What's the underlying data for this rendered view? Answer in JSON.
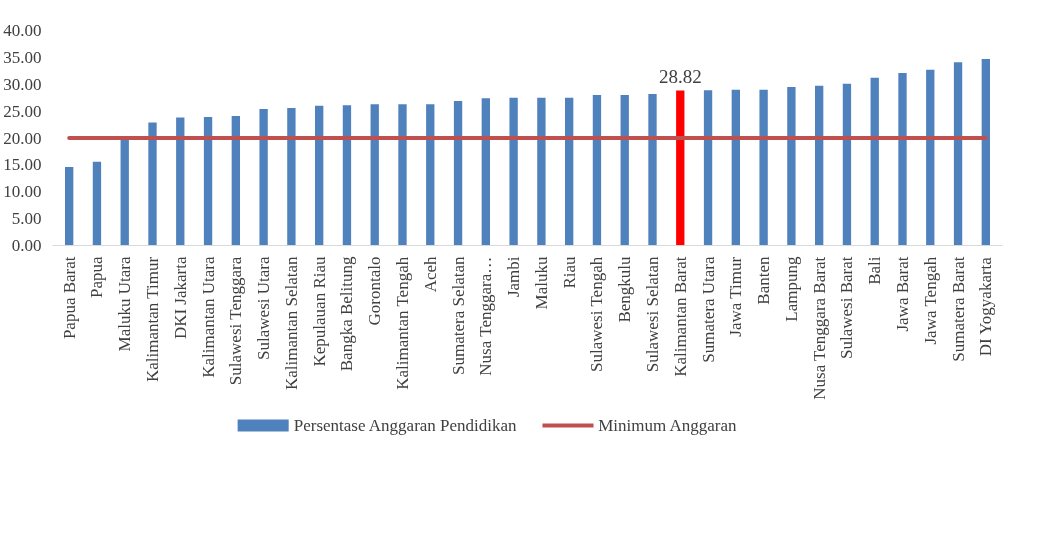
{
  "chart_data": {
    "type": "bar",
    "categories": [
      "Papua Barat",
      "Papua",
      "Maluku Utara",
      "Kalimantan Timur",
      "DKI Jakarta",
      "Kalimantan Utara",
      "Sulawesi Tenggara",
      "Sulawesi Utara",
      "Kalimantan Selatan",
      "Kepulauan Riau",
      "Bangka Belitung",
      "Gorontalo",
      "Kalimantan Tengah",
      "Aceh",
      "Sumatera Selatan",
      "Nusa Tenggara…",
      "Jambi",
      "Maluku",
      "Riau",
      "Sulawesi Tengah",
      "Bengkulu",
      "Sulawesi Selatan",
      "Kalimantan Barat",
      "Sumatera Utara",
      "Jawa Timur",
      "Banten",
      "Lampung",
      "Nusa Tenggara Barat",
      "Sulawesi Barat",
      "Bali",
      "Jawa Barat",
      "Jawa Tengah",
      "Sumatera Barat",
      "DI Yogyakarta"
    ],
    "series": [
      {
        "name": "Persentase Anggaran Pendidikan",
        "color": "#4f81bd",
        "colors": [
          "#4f81bd",
          "#4f81bd",
          "#4f81bd",
          "#4f81bd",
          "#4f81bd",
          "#4f81bd",
          "#4f81bd",
          "#4f81bd",
          "#4f81bd",
          "#4f81bd",
          "#4f81bd",
          "#4f81bd",
          "#4f81bd",
          "#4f81bd",
          "#4f81bd",
          "#4f81bd",
          "#4f81bd",
          "#4f81bd",
          "#4f81bd",
          "#4f81bd",
          "#4f81bd",
          "#4f81bd",
          "#ff0000",
          "#4f81bd",
          "#4f81bd",
          "#4f81bd",
          "#4f81bd",
          "#4f81bd",
          "#4f81bd",
          "#4f81bd",
          "#4f81bd",
          "#4f81bd",
          "#4f81bd",
          "#4f81bd"
        ],
        "values": [
          14.6,
          15.6,
          19.7,
          22.9,
          23.8,
          23.9,
          24.1,
          25.4,
          25.6,
          26.0,
          26.1,
          26.3,
          26.3,
          26.3,
          26.9,
          27.4,
          27.5,
          27.5,
          27.5,
          28.0,
          28.0,
          28.2,
          28.82,
          28.9,
          29.0,
          29.0,
          29.5,
          29.7,
          30.1,
          31.2,
          32.1,
          32.7,
          34.1,
          34.7
        ],
        "value_labels": [
          null,
          null,
          null,
          null,
          null,
          null,
          null,
          null,
          null,
          null,
          null,
          null,
          null,
          null,
          null,
          null,
          null,
          null,
          null,
          null,
          null,
          null,
          "28.82",
          null,
          null,
          null,
          null,
          null,
          null,
          null,
          null,
          null,
          null,
          null
        ]
      },
      {
        "name": "Minimum Anggaran",
        "type": "line",
        "color": "#c0504d",
        "values": [
          20,
          20,
          20,
          20,
          20,
          20,
          20,
          20,
          20,
          20,
          20,
          20,
          20,
          20,
          20,
          20,
          20,
          20,
          20,
          20,
          20,
          20,
          20,
          20,
          20,
          20,
          20,
          20,
          20,
          20,
          20,
          20,
          20,
          20
        ]
      }
    ],
    "ylim": [
      0,
      40
    ],
    "yticks": [
      {
        "value": 0,
        "label": "0.00"
      },
      {
        "value": 5,
        "label": "5.00"
      },
      {
        "value": 10,
        "label": "10.00"
      },
      {
        "value": 15,
        "label": "15.00"
      },
      {
        "value": 20,
        "label": "20.00"
      },
      {
        "value": 25,
        "label": "25.00"
      },
      {
        "value": 30,
        "label": "30.00"
      },
      {
        "value": 35,
        "label": "35.00"
      },
      {
        "value": 40,
        "label": "40.00"
      }
    ],
    "grid": false,
    "legend": "bottom"
  }
}
